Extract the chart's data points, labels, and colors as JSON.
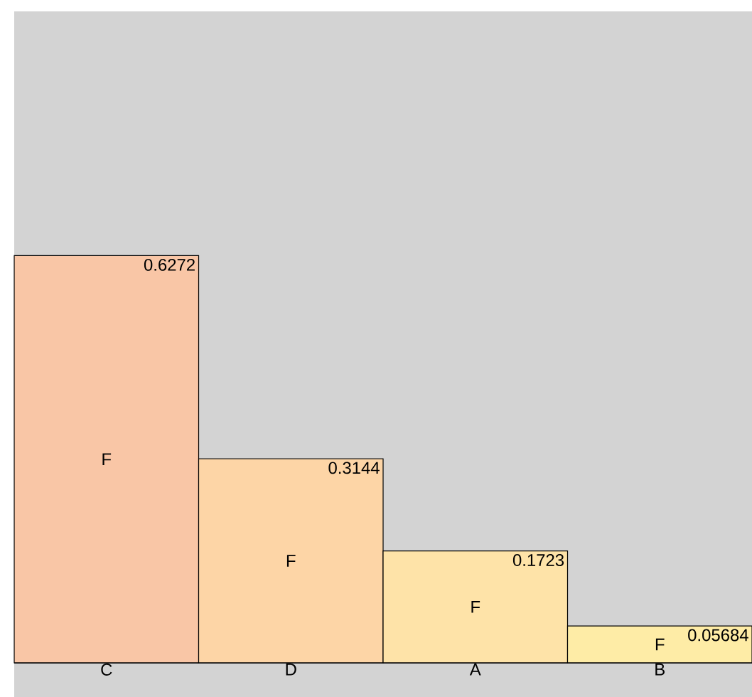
{
  "chart_data": {
    "type": "bar",
    "categories": [
      "C",
      "D",
      "A",
      "B"
    ],
    "values": [
      0.6272,
      0.3144,
      0.1723,
      0.05684
    ],
    "colors": [
      "#f9c6a6",
      "#fdd5a6",
      "#fee3a8",
      "#feeca6"
    ],
    "data_labels": true,
    "annotations": [
      "F",
      "F",
      "F",
      "F"
    ]
  }
}
